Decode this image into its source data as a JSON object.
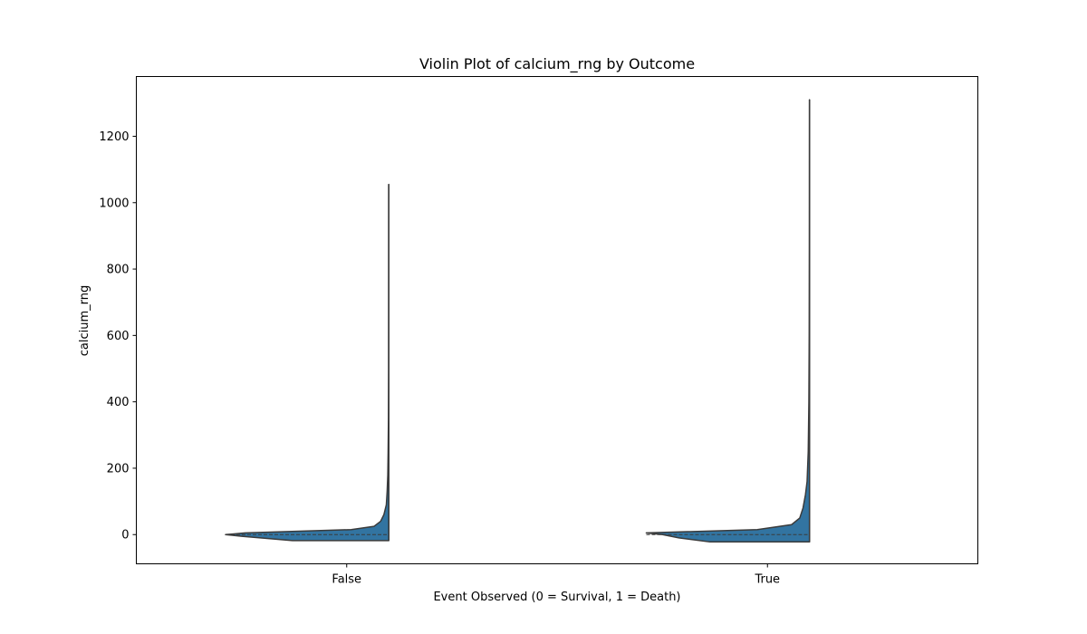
{
  "chart_data": {
    "type": "violin",
    "title": "Violin Plot of calcium_rng by Outcome",
    "xlabel": "Event Observed (0 = Survival, 1 = Death)",
    "ylabel": "calcium_rng",
    "categories": [
      "False",
      "True"
    ],
    "yticks": [
      0,
      200,
      400,
      600,
      800,
      1000,
      1200
    ],
    "ylim": [
      -88,
      1380
    ],
    "grid": false,
    "color": "#3274a1",
    "edge_color": "#3b3b3b",
    "violins": [
      {
        "category": "False",
        "min": -18,
        "max": 1055,
        "median": 0,
        "profile": [
          [
            -18,
            0.59
          ],
          [
            -5,
            0.9
          ],
          [
            0,
            1.0
          ],
          [
            5,
            0.88
          ],
          [
            15,
            0.23
          ],
          [
            25,
            0.09
          ],
          [
            40,
            0.05
          ],
          [
            60,
            0.03
          ],
          [
            90,
            0.015
          ],
          [
            130,
            0.01
          ],
          [
            180,
            0.006
          ],
          [
            250,
            0.004
          ],
          [
            350,
            0.002
          ],
          [
            500,
            0.001
          ],
          [
            700,
            0.0008
          ],
          [
            1055,
            0.0005
          ]
        ]
      },
      {
        "category": "True",
        "min": -22,
        "max": 1310,
        "median": 0,
        "profile": [
          [
            -22,
            0.61
          ],
          [
            -10,
            0.8
          ],
          [
            0,
            0.9
          ],
          [
            5,
            1.0
          ],
          [
            15,
            0.32
          ],
          [
            30,
            0.11
          ],
          [
            50,
            0.06
          ],
          [
            80,
            0.04
          ],
          [
            120,
            0.025
          ],
          [
            160,
            0.015
          ],
          [
            250,
            0.008
          ],
          [
            400,
            0.004
          ],
          [
            600,
            0.002
          ],
          [
            900,
            0.001
          ],
          [
            1310,
            0.0005
          ]
        ]
      }
    ]
  }
}
